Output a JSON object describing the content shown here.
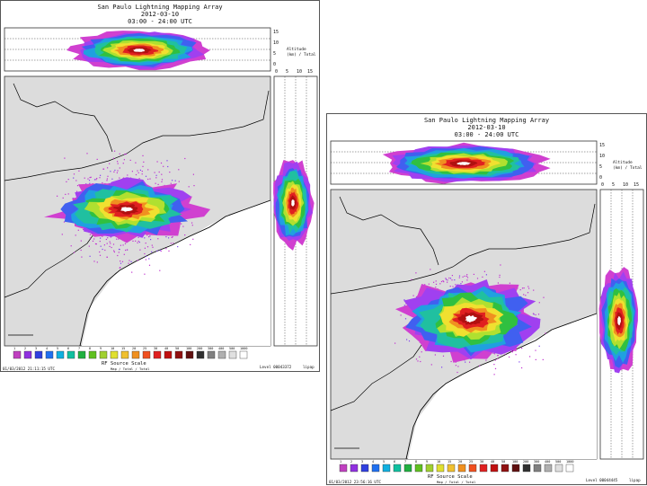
{
  "panels": [
    {
      "title": "San Paulo Lightning Mapping Array",
      "date": "2012-03-10",
      "time_range": "03:00 - 24:00 UTC",
      "side_note": [
        "Altitude",
        "(km) / Total"
      ],
      "scale_title": "RF Source Scale",
      "scale_subtitle": "Map / Total / Total",
      "footer_left": "01/03/2012 21:11:15 UTC",
      "footer_right": "Level 00043372",
      "footer_right2": "lipap",
      "scale_labels": [
        "1",
        "2",
        "3",
        "4",
        "5",
        "6",
        "7",
        "8",
        "9",
        "10",
        "15",
        "20",
        "25",
        "30",
        "40",
        "50",
        "100",
        "200",
        "300",
        "400",
        "500",
        "1000"
      ]
    },
    {
      "title": "San Paulo Lightning Mapping Array",
      "date": "2012-03-10",
      "time_range": "03:00 - 24:00 UTC",
      "side_note": [
        "Altitude",
        "(km) / Total"
      ],
      "scale_title": "RF Source Scale",
      "scale_subtitle": "Map / Total / Total",
      "footer_left": "01/03/2012 23:56:16 UTC",
      "footer_right": "Level 00044445",
      "footer_right2": "lipap",
      "scale_labels": [
        "1",
        "2",
        "3",
        "4",
        "5",
        "6",
        "7",
        "8",
        "9",
        "10",
        "15",
        "20",
        "25",
        "30",
        "40",
        "50",
        "100",
        "200",
        "300",
        "400",
        "500",
        "1000"
      ]
    }
  ],
  "colors": {
    "land": "#dcdcdc",
    "scale": [
      "#c040c0",
      "#9030e0",
      "#3040e0",
      "#2070f0",
      "#10b0e0",
      "#10c0a0",
      "#20b040",
      "#60c020",
      "#a0d030",
      "#e0e030",
      "#f0c030",
      "#f09020",
      "#f05020",
      "#e02020",
      "#c01010",
      "#901010",
      "#601010",
      "#303030",
      "#808080",
      "#b0b0b0",
      "#e0e0e0",
      "#ffffff"
    ]
  }
}
